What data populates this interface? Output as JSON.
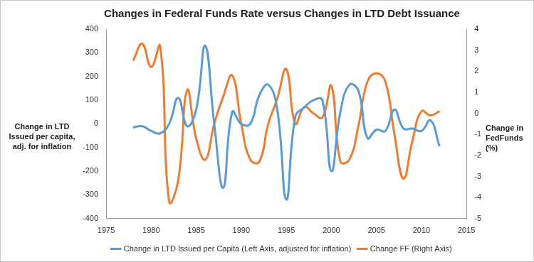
{
  "chart_data": {
    "type": "line",
    "title": "Changes in Federal Funds Rate versus Changes in LTD Debt Issuance",
    "ylabel": "Change in LTD  Issued per capita, adj. for inflation",
    "y2label": "Change in FedFunds (%)",
    "xlim": [
      1975,
      2015
    ],
    "xticks": [
      1975,
      1980,
      1985,
      1990,
      1995,
      2000,
      2005,
      2010,
      2015
    ],
    "ylim": [
      -400,
      400
    ],
    "yticks": [
      -400,
      -300,
      -200,
      -100,
      0,
      100,
      200,
      300,
      400
    ],
    "y2lim": [
      -5,
      4
    ],
    "y2ticks": [
      -5,
      -4,
      -3,
      -2,
      -1,
      0,
      1,
      2,
      3,
      4
    ],
    "grid": false,
    "legend": "bottom",
    "x": [
      1978,
      1979,
      1980,
      1981,
      1982,
      1983,
      1984,
      1985,
      1986,
      1987,
      1988,
      1989,
      1990,
      1991,
      1992,
      1993,
      1994,
      1995,
      1996,
      1997,
      1998,
      1999,
      2000,
      2001,
      2002,
      2003,
      2004,
      2005,
      2006,
      2007,
      2008,
      2009,
      2010,
      2011,
      2012
    ],
    "series": [
      {
        "name": "Change in LTD Issued per Capita (Left Axis, adjusted for inflation)",
        "color": "#5b9bd5",
        "values": [
          -15,
          -10,
          -30,
          -40,
          0,
          110,
          -10,
          60,
          330,
          0,
          -270,
          50,
          0,
          0,
          120,
          165,
          60,
          -320,
          30,
          70,
          100,
          100,
          -200,
          50,
          165,
          140,
          -60,
          -25,
          -30,
          60,
          -20,
          -20,
          -30,
          15,
          -95
        ]
      },
      {
        "name": "Change FF (Right Axis)",
        "color": "#ed7d31",
        "axis": "y2",
        "values": [
          2.5,
          3.3,
          2.2,
          3.2,
          -4.2,
          -3.2,
          1.1,
          -1.2,
          -2.2,
          -0.5,
          0.8,
          1.8,
          -0.5,
          -2.2,
          -2.3,
          -0.5,
          0.7,
          2.1,
          -0.5,
          0.3,
          0,
          -0.2,
          1.3,
          -2.3,
          -2.2,
          -0.6,
          1.5,
          1.9,
          1.5,
          -1.0,
          -3.1,
          -1.3,
          0.1,
          -0.1,
          0.1
        ]
      }
    ]
  }
}
